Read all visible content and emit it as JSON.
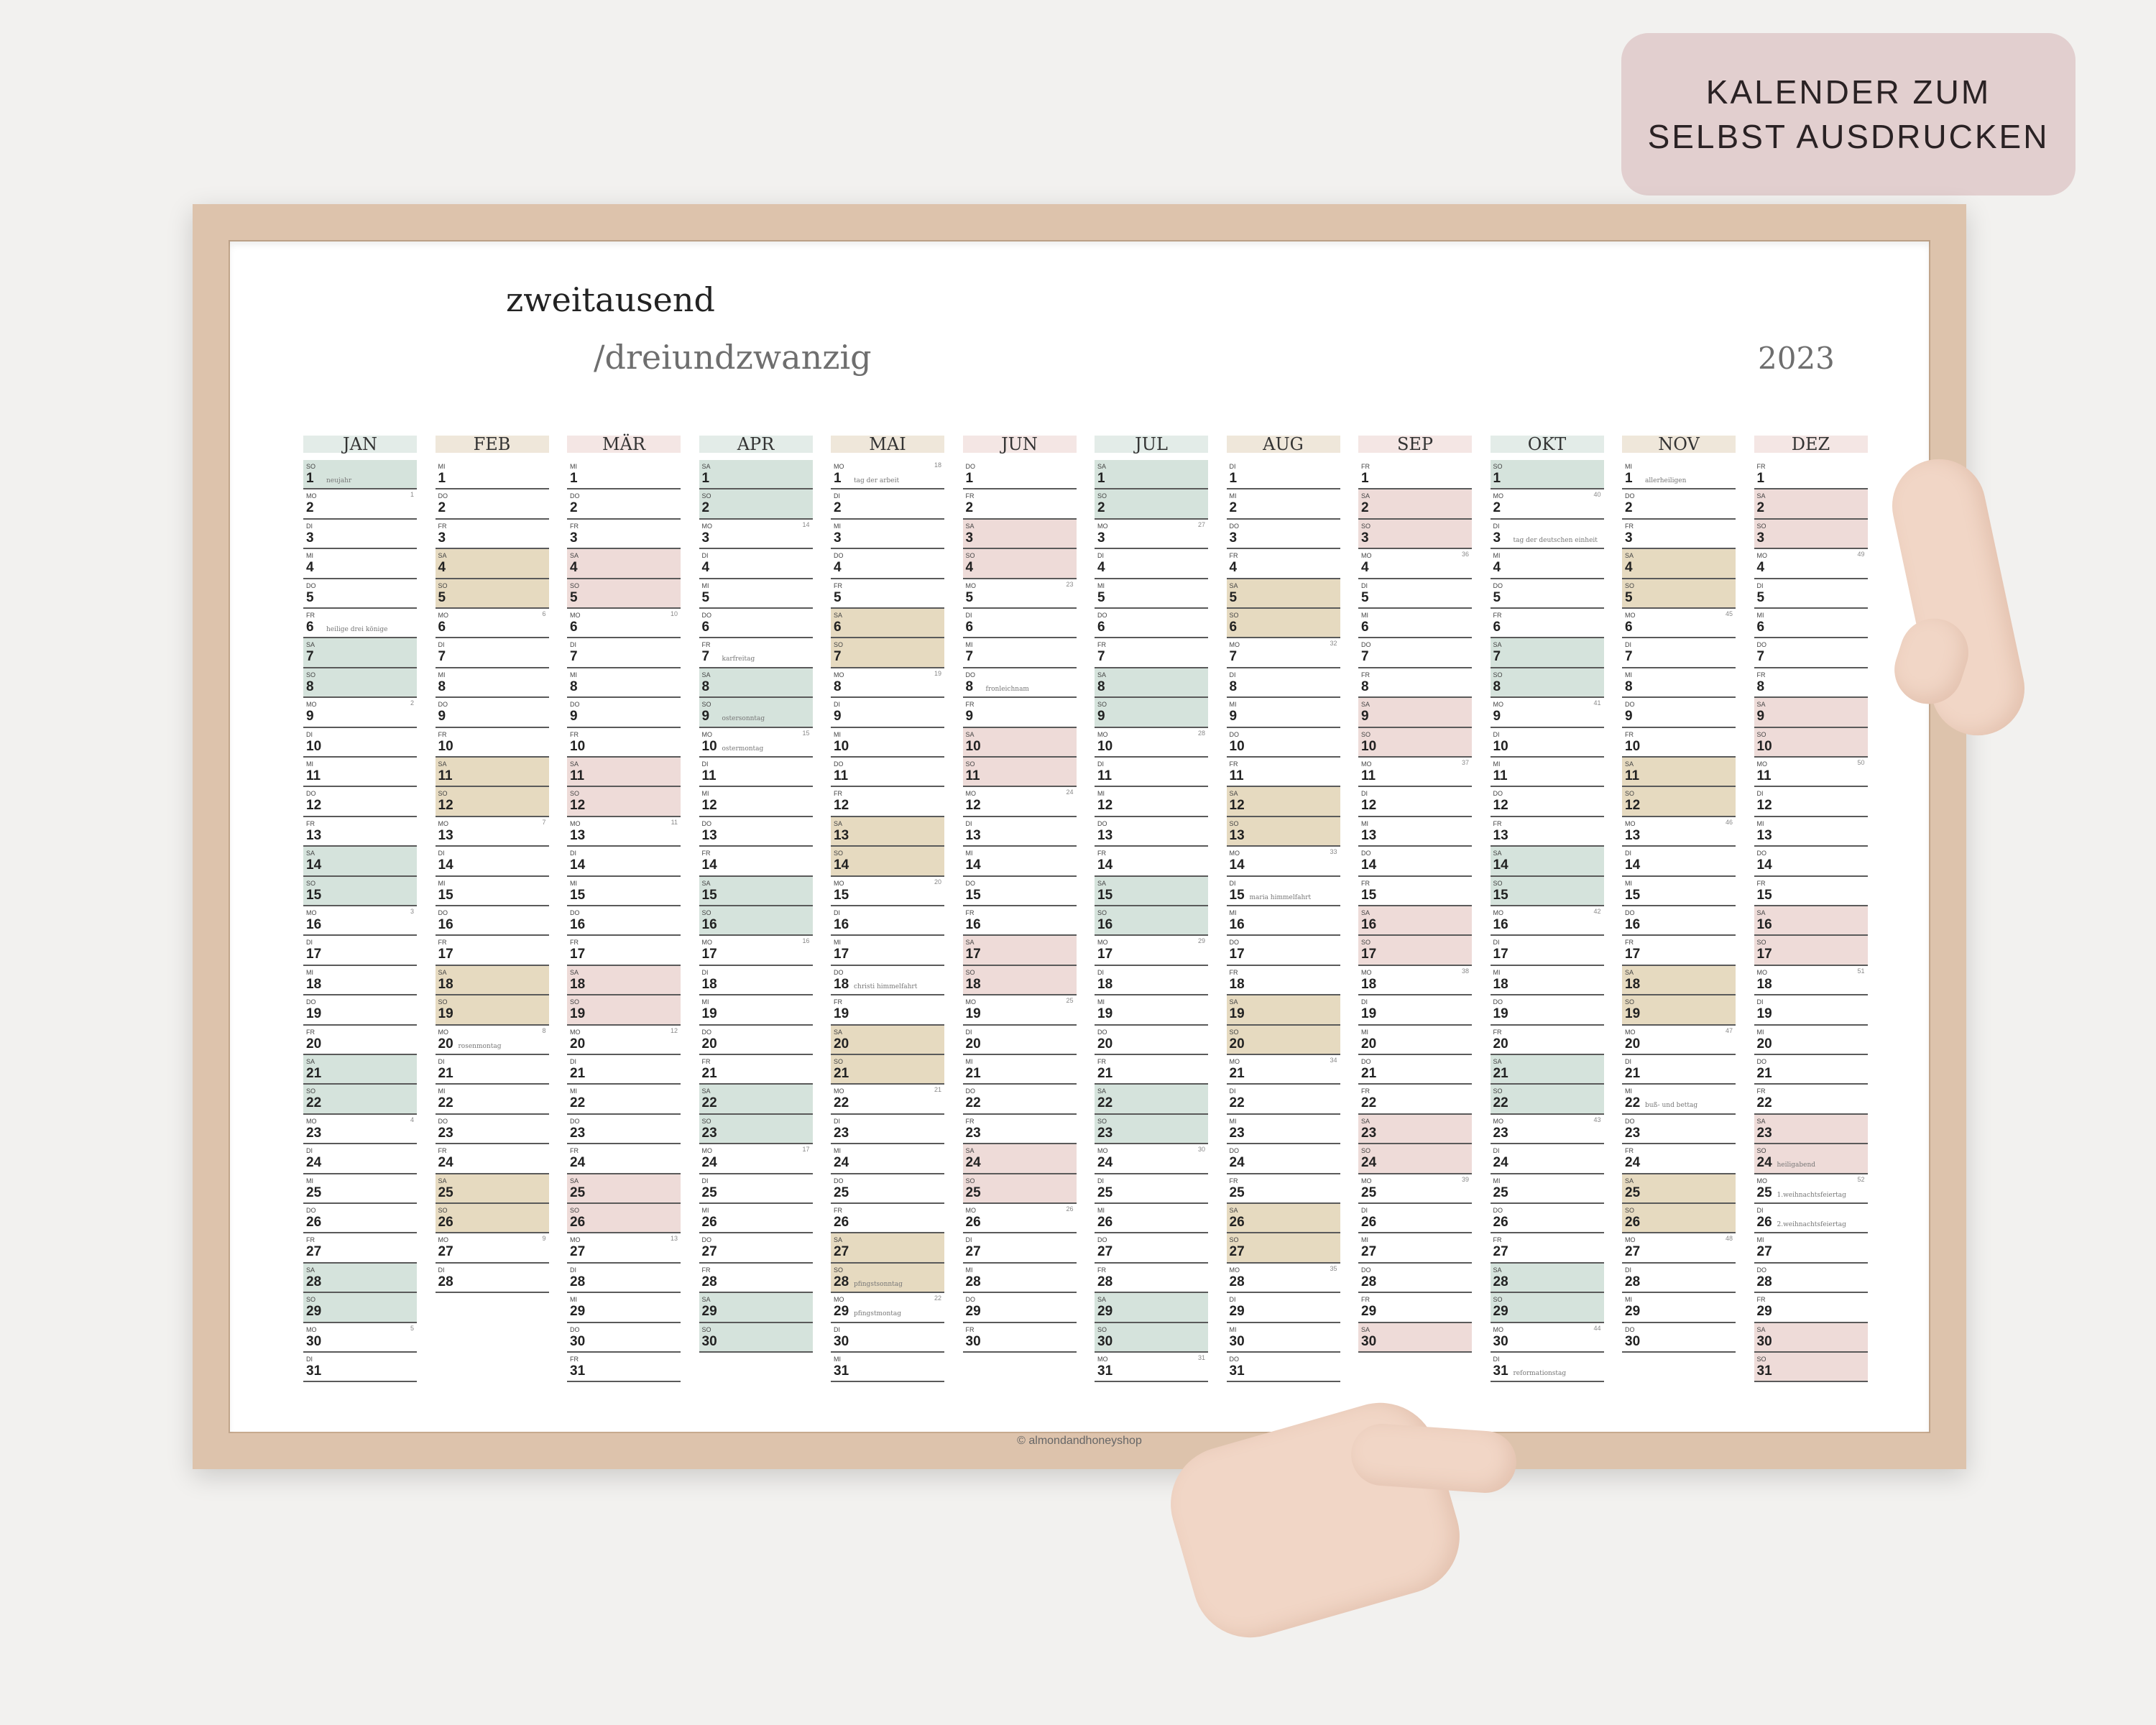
{
  "badge": {
    "line1": "KALENDER ZUM",
    "line2": "SELBST AUSDRUCKEN"
  },
  "poster": {
    "title_line1": "zweitausend",
    "title_line2": "/dreiundzwanzig",
    "year": "2023",
    "footer": "© almondandhoneyshop"
  },
  "colors": {
    "background": "#f2f1ef",
    "badge": "#e2cfcf",
    "frame": "#ddc3ac",
    "green": "#d5e3dc",
    "beige": "#e6dac0",
    "pink": "#eedbd8",
    "header_green": "#e3ece8",
    "header_beige": "#efe7da",
    "header_pink": "#f4e6e4"
  },
  "calendar": {
    "months": [
      {
        "name": "JAN",
        "theme": "green",
        "start": 0,
        "days": 31
      },
      {
        "name": "FEB",
        "theme": "beige",
        "start": 3,
        "days": 28
      },
      {
        "name": "MÄR",
        "theme": "pink",
        "start": 3,
        "days": 31
      },
      {
        "name": "APR",
        "theme": "green",
        "start": 6,
        "days": 30
      },
      {
        "name": "MAI",
        "theme": "beige",
        "start": 1,
        "days": 31
      },
      {
        "name": "JUN",
        "theme": "pink",
        "start": 4,
        "days": 30
      },
      {
        "name": "JUL",
        "theme": "green",
        "start": 6,
        "days": 31
      },
      {
        "name": "AUG",
        "theme": "beige",
        "start": 2,
        "days": 31
      },
      {
        "name": "SEP",
        "theme": "pink",
        "start": 5,
        "days": 30
      },
      {
        "name": "OKT",
        "theme": "green",
        "start": 0,
        "days": 31
      },
      {
        "name": "NOV",
        "theme": "beige",
        "start": 3,
        "days": 30
      },
      {
        "name": "DEZ",
        "theme": "pink",
        "start": 5,
        "days": 31
      }
    ],
    "weekday_labels": [
      "SO",
      "MO",
      "DI",
      "MI",
      "DO",
      "FR",
      "SA"
    ],
    "holidays": {
      "JAN": {
        "1": "neujahr",
        "6": "heilige drei könige"
      },
      "APR": {
        "7": "karfreitag",
        "9": "ostersonntag",
        "10": "ostermontag"
      },
      "MAI": {
        "1": "tag der arbeit",
        "18": "christi himmelfahrt",
        "28": "pfingstsonntag",
        "29": "pfingstmontag"
      },
      "JUN": {
        "8": "fronleichnam"
      },
      "AUG": {
        "15": "maria himmelfahrt"
      },
      "OKT": {
        "3": "tag der deutschen einheit",
        "31": "reformationstag"
      },
      "NOV": {
        "1": "allerheiligen",
        "22": "buß- und bettag"
      },
      "FEB": {
        "20": "rosenmontag"
      },
      "DEZ": {
        "24": "heiligabend",
        "25": "1.weihnachtsfeiertag",
        "26": "2.weihnachtsfeiertag"
      }
    },
    "week_numbers": {
      "JAN": {
        "2": "1",
        "9": "2",
        "16": "3",
        "23": "4",
        "30": "5"
      },
      "FEB": {
        "6": "6",
        "13": "7",
        "20": "8",
        "27": "9"
      },
      "MÄR": {
        "6": "10",
        "13": "11",
        "20": "12",
        "27": "13"
      },
      "APR": {
        "3": "14",
        "10": "15",
        "17": "16",
        "24": "17"
      },
      "MAI": {
        "1": "18",
        "8": "19",
        "15": "20",
        "22": "21",
        "29": "22"
      },
      "JUN": {
        "5": "23",
        "12": "24",
        "19": "25",
        "26": "26"
      },
      "JUL": {
        "3": "27",
        "10": "28",
        "17": "29",
        "24": "30",
        "31": "31"
      },
      "AUG": {
        "7": "32",
        "14": "33",
        "21": "34",
        "28": "35"
      },
      "SEP": {
        "4": "36",
        "11": "37",
        "18": "38",
        "25": "39"
      },
      "OKT": {
        "2": "40",
        "9": "41",
        "16": "42",
        "23": "43",
        "30": "44"
      },
      "NOV": {
        "6": "45",
        "13": "46",
        "20": "47",
        "27": "48"
      },
      "DEZ": {
        "4": "49",
        "11": "50",
        "18": "51",
        "25": "52"
      }
    }
  }
}
